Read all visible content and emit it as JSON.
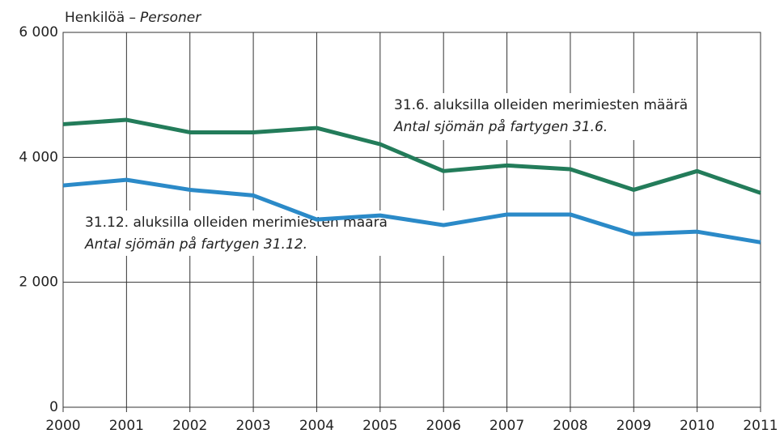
{
  "chart_data": {
    "type": "line",
    "y_label": "Henkilöä –",
    "y_label_sv": "Personer",
    "x": [
      2000,
      2001,
      2002,
      2003,
      2004,
      2005,
      2006,
      2007,
      2008,
      2009,
      2010,
      2011
    ],
    "xlim": [
      2000,
      2011
    ],
    "xticks": [
      2000,
      2001,
      2002,
      2003,
      2004,
      2005,
      2006,
      2007,
      2008,
      2009,
      2010,
      2011
    ],
    "ylim": [
      0,
      6000
    ],
    "yticks": [
      {
        "value": 0,
        "label": "0"
      },
      {
        "value": 2000,
        "label": "2 000"
      },
      {
        "value": 4000,
        "label": "4 000"
      },
      {
        "value": 6000,
        "label": "6 000"
      }
    ],
    "grid": true,
    "series": [
      {
        "name": "31.6. aluksilla olleiden merimiesten määrä",
        "name_sv": "Antal sjömän på fartygen 31.6.",
        "color": "#237c5a",
        "values": [
          4530,
          4600,
          4400,
          4400,
          4470,
          4210,
          3780,
          3870,
          3810,
          3480,
          3780,
          3430
        ]
      },
      {
        "name": "31.12. aluksilla olleiden merimiesten määrä",
        "name_sv": "Antal sjömän på fartygen 31.12.",
        "color": "#2b8ac8",
        "values": [
          3550,
          3640,
          3480,
          3390,
          3005,
          3070,
          2915,
          3085,
          3085,
          2770,
          2810,
          2640
        ]
      }
    ]
  }
}
